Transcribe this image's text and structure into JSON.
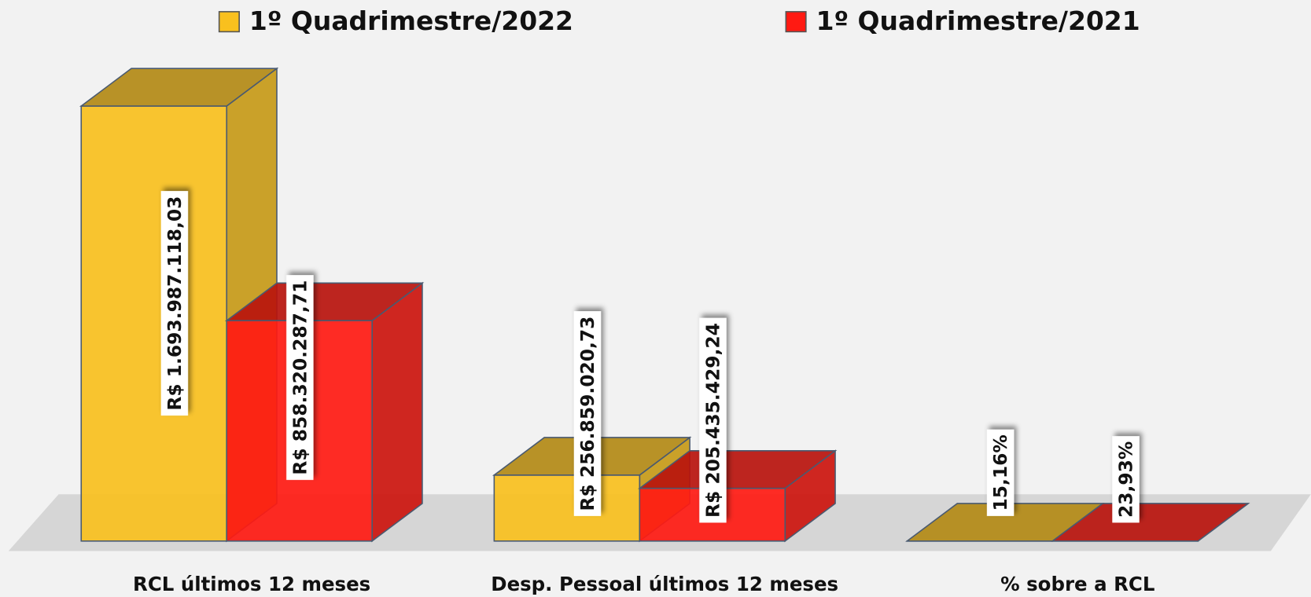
{
  "chart_data": {
    "type": "bar3d",
    "categories": [
      "RCL últimos 12 meses",
      "Desp. Pessoal últimos 12 meses",
      "% sobre a RCL"
    ],
    "series": [
      {
        "name": "1º Quadrimestre/2022",
        "color": "#f9c01e",
        "values": [
          1693987118.03,
          256859020.73,
          15.16
        ],
        "value_labels": [
          "R$ 1.693.987.118,03",
          "R$ 256.859.020,73",
          "15,16%"
        ]
      },
      {
        "name": "1º Quadrimestre/2021",
        "color": "#ff1a12",
        "values": [
          858320287.71,
          205435429.24,
          23.93
        ],
        "value_labels": [
          "R$ 858.320.287,71",
          "R$ 205.435.429,24",
          "23,93%"
        ]
      }
    ],
    "legend": "top"
  }
}
